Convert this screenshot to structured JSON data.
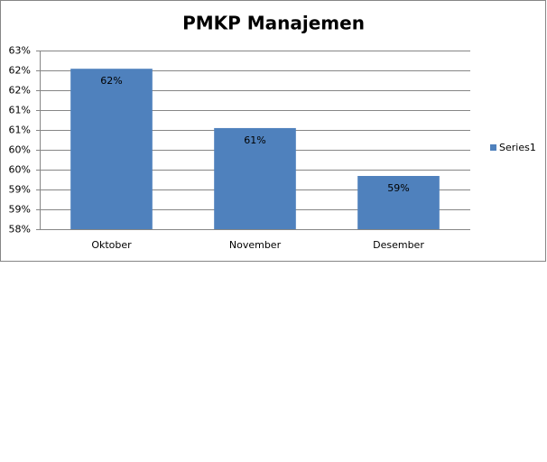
{
  "chart_data": {
    "type": "bar",
    "title": "PMKP Manajemen",
    "categories": [
      "Oktober",
      "November",
      "Desember"
    ],
    "series": [
      {
        "name": "Series1",
        "color": "#4f81bd",
        "values": [
          62.49,
          60.83,
          59.49
        ],
        "value_labels": [
          "62%",
          "61%",
          "59%"
        ]
      }
    ],
    "ylim": [
      58,
      63
    ],
    "yticks": [
      {
        "value": 58,
        "label": "58%"
      },
      {
        "value": 58.556,
        "label": "59%"
      },
      {
        "value": 59.111,
        "label": "59%"
      },
      {
        "value": 59.667,
        "label": "60%"
      },
      {
        "value": 60.222,
        "label": "60%"
      },
      {
        "value": 60.778,
        "label": "61%"
      },
      {
        "value": 61.333,
        "label": "61%"
      },
      {
        "value": 61.889,
        "label": "62%"
      },
      {
        "value": 62.444,
        "label": "62%"
      },
      {
        "value": 63,
        "label": "63%"
      }
    ],
    "grid": true,
    "legend": "right"
  }
}
